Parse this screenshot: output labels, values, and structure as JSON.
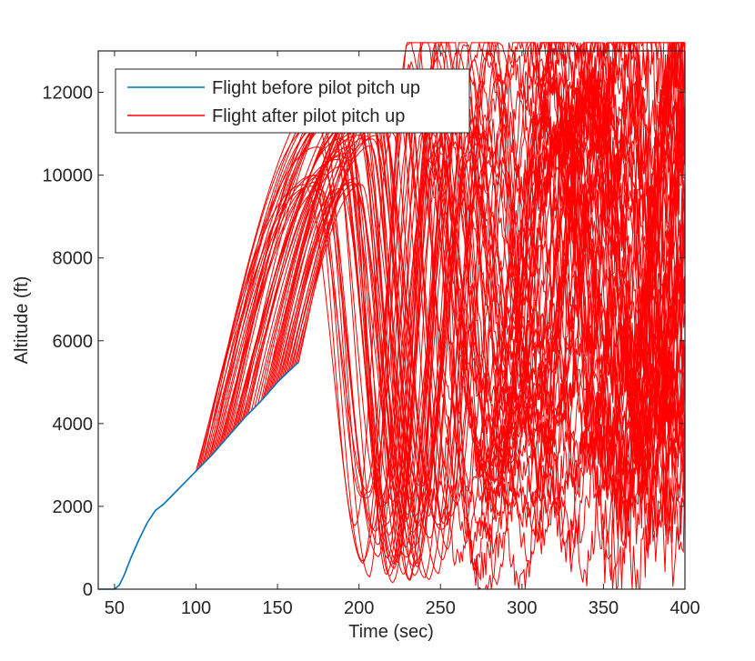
{
  "chart_data": {
    "type": "line",
    "xlabel": "Time (sec)",
    "ylabel": "Altitude (ft)",
    "xlim": [
      40,
      400
    ],
    "ylim": [
      0,
      13000
    ],
    "xticks": [
      50,
      100,
      150,
      200,
      250,
      300,
      350,
      400
    ],
    "yticks": [
      0,
      2000,
      4000,
      6000,
      8000,
      10000,
      12000
    ],
    "xtick_labels": [
      "50",
      "100",
      "150",
      "200",
      "250",
      "300",
      "350",
      "400"
    ],
    "ytick_labels": [
      "0",
      "2000",
      "4000",
      "6000",
      "8000",
      "10000",
      "12000"
    ],
    "grid": false,
    "legend_position": "top-left",
    "colors": {
      "before": "#0072BD",
      "after": "#FF0000"
    },
    "series": [
      {
        "name": "Flight before pilot pitch up",
        "color": "#0072BD",
        "x": [
          40,
          50,
          53,
          56,
          60,
          65,
          70,
          75,
          80,
          90,
          100,
          110,
          120,
          130,
          140,
          150,
          160,
          163
        ],
        "y": [
          0,
          0,
          100,
          350,
          750,
          1200,
          1600,
          1900,
          2050,
          2450,
          2850,
          3250,
          3700,
          4150,
          4550,
          5000,
          5380,
          5480
        ]
      },
      {
        "name": "Flight after pilot pitch up",
        "color": "#FF0000",
        "description_of_values": "ensemble of 60 trajectories; each listed by pitch-up time t0 and altitude at pitch-up h0, followed by an oscillatory climb-dive-recovery",
        "trajectories": [
          {
            "t0": 100,
            "h0": 2850
          },
          {
            "t0": 101,
            "h0": 2890
          },
          {
            "t0": 102,
            "h0": 2930
          },
          {
            "t0": 103,
            "h0": 2970
          },
          {
            "t0": 104,
            "h0": 3010
          },
          {
            "t0": 106,
            "h0": 3090
          },
          {
            "t0": 108,
            "h0": 3170
          },
          {
            "t0": 110,
            "h0": 3250
          },
          {
            "t0": 112,
            "h0": 3340
          },
          {
            "t0": 114,
            "h0": 3430
          },
          {
            "t0": 116,
            "h0": 3520
          },
          {
            "t0": 118,
            "h0": 3610
          },
          {
            "t0": 120,
            "h0": 3700
          },
          {
            "t0": 122,
            "h0": 3790
          },
          {
            "t0": 124,
            "h0": 3880
          },
          {
            "t0": 126,
            "h0": 3970
          },
          {
            "t0": 128,
            "h0": 4060
          },
          {
            "t0": 130,
            "h0": 4150
          },
          {
            "t0": 132,
            "h0": 4230
          },
          {
            "t0": 134,
            "h0": 4310
          },
          {
            "t0": 136,
            "h0": 4390
          },
          {
            "t0": 138,
            "h0": 4470
          },
          {
            "t0": 140,
            "h0": 4550
          },
          {
            "t0": 141,
            "h0": 4595
          },
          {
            "t0": 142,
            "h0": 4640
          },
          {
            "t0": 143,
            "h0": 4685
          },
          {
            "t0": 144,
            "h0": 4730
          },
          {
            "t0": 145,
            "h0": 4775
          },
          {
            "t0": 146,
            "h0": 4820
          },
          {
            "t0": 147,
            "h0": 4865
          },
          {
            "t0": 148,
            "h0": 4910
          },
          {
            "t0": 149,
            "h0": 4955
          },
          {
            "t0": 150,
            "h0": 5000
          },
          {
            "t0": 151,
            "h0": 5038
          },
          {
            "t0": 152,
            "h0": 5076
          },
          {
            "t0": 153,
            "h0": 5114
          },
          {
            "t0": 154,
            "h0": 5152
          },
          {
            "t0": 155,
            "h0": 5190
          },
          {
            "t0": 156,
            "h0": 5228
          },
          {
            "t0": 157,
            "h0": 5266
          },
          {
            "t0": 158,
            "h0": 5304
          },
          {
            "t0": 159,
            "h0": 5342
          },
          {
            "t0": 160,
            "h0": 5380
          },
          {
            "t0": 161,
            "h0": 5410
          },
          {
            "t0": 162,
            "h0": 5445
          },
          {
            "t0": 163,
            "h0": 5480
          },
          {
            "t0": 105,
            "h0": 3050
          },
          {
            "t0": 107,
            "h0": 3130
          },
          {
            "t0": 109,
            "h0": 3210
          },
          {
            "t0": 111,
            "h0": 3295
          },
          {
            "t0": 113,
            "h0": 3385
          },
          {
            "t0": 115,
            "h0": 3475
          },
          {
            "t0": 117,
            "h0": 3565
          },
          {
            "t0": 119,
            "h0": 3655
          },
          {
            "t0": 121,
            "h0": 3745
          },
          {
            "t0": 123,
            "h0": 3835
          },
          {
            "t0": 125,
            "h0": 3925
          },
          {
            "t0": 127,
            "h0": 4015
          },
          {
            "t0": 129,
            "h0": 4105
          },
          {
            "t0": 131,
            "h0": 4190
          }
        ]
      }
    ]
  }
}
